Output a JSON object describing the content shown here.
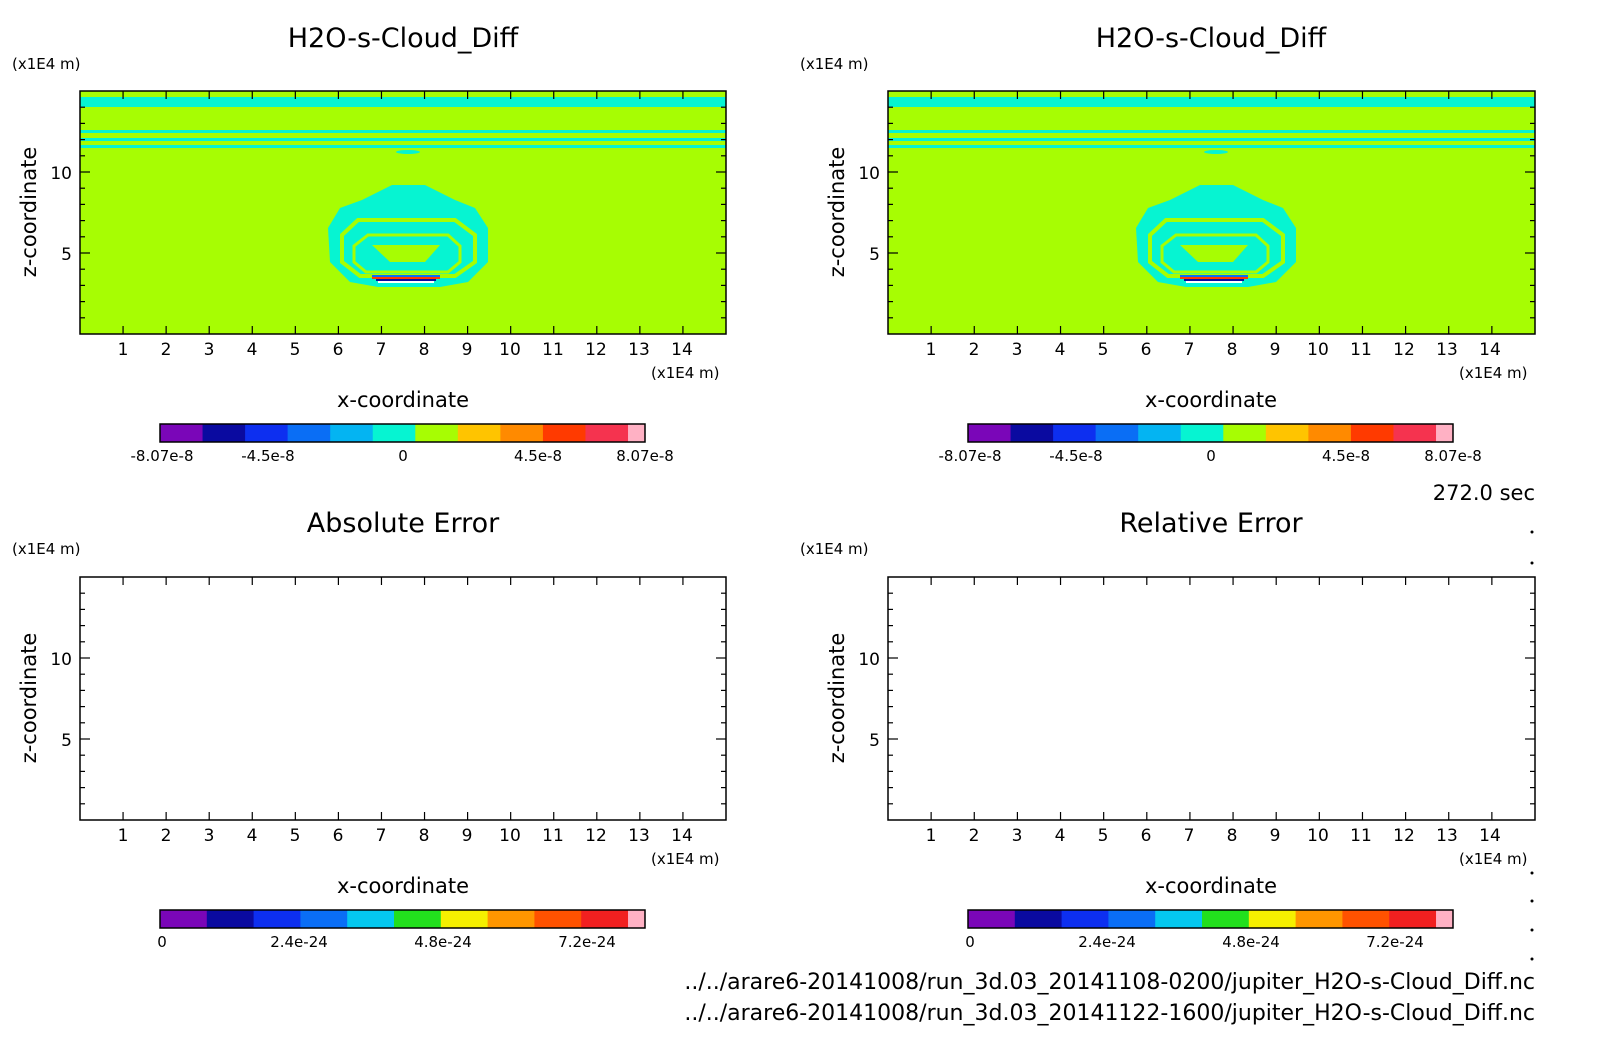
{
  "colors": {
    "diff_colorbar": [
      "#7a06b8",
      "#0a0aa0",
      "#0d2ff0",
      "#0a6ef5",
      "#04b4f2",
      "#06f4d2",
      "#a7fd03",
      "#ffc400",
      "#ff8a00",
      "#ff3a00",
      "#f5334f",
      "#ffb1c4"
    ],
    "error_colorbar": [
      "#7a06b8",
      "#0a0aa0",
      "#0d2ff0",
      "#0a6ef5",
      "#04c8f0",
      "#22e01d",
      "#f5f000",
      "#ff9600",
      "#ff5200",
      "#f22020",
      "#ffb1c4"
    ],
    "field_background": "#a7fd03",
    "field_feature": "#06f4d2"
  },
  "chart_data": [
    {
      "type": "heatmap",
      "title": "H2O-s-Cloud_Diff",
      "xlabel": "x-coordinate",
      "ylabel": "z-coordinate",
      "xunit": "(x1E4 m)",
      "yunit": "(x1E4 m)",
      "xlim": [
        0,
        15
      ],
      "ylim": [
        0,
        15
      ],
      "xticks": [
        "1",
        "2",
        "3",
        "4",
        "5",
        "6",
        "7",
        "8",
        "9",
        "10",
        "11",
        "12",
        "13",
        "14"
      ],
      "yticks": [
        "5",
        "10"
      ],
      "colorbar": {
        "range": [
          -8.07e-08,
          8.07e-08
        ],
        "ticks": [
          "-8.07e-8",
          "-4.5e-8",
          "0",
          "4.5e-8",
          "8.07e-8"
        ]
      },
      "field": "mostly 0 with a small-magnitude cloud structure centred near x=7.7, z=6 and horizontal bands near z=11-15"
    },
    {
      "type": "heatmap",
      "title": "H2O-s-Cloud_Diff",
      "xlabel": "x-coordinate",
      "ylabel": "z-coordinate",
      "xunit": "(x1E4 m)",
      "yunit": "(x1E4 m)",
      "xlim": [
        0,
        15
      ],
      "ylim": [
        0,
        15
      ],
      "xticks": [
        "1",
        "2",
        "3",
        "4",
        "5",
        "6",
        "7",
        "8",
        "9",
        "10",
        "11",
        "12",
        "13",
        "14"
      ],
      "yticks": [
        "5",
        "10"
      ],
      "colorbar": {
        "range": [
          -8.07e-08,
          8.07e-08
        ],
        "ticks": [
          "-8.07e-8",
          "-4.5e-8",
          "0",
          "4.5e-8",
          "8.07e-8"
        ]
      },
      "field": "identical to left panel"
    },
    {
      "type": "heatmap",
      "title": "Absolute Error",
      "xlabel": "x-coordinate",
      "ylabel": "z-coordinate",
      "xunit": "(x1E4 m)",
      "yunit": "(x1E4 m)",
      "xlim": [
        0,
        15
      ],
      "ylim": [
        0,
        15
      ],
      "xticks": [
        "1",
        "2",
        "3",
        "4",
        "5",
        "6",
        "7",
        "8",
        "9",
        "10",
        "11",
        "12",
        "13",
        "14"
      ],
      "yticks": [
        "5",
        "10"
      ],
      "colorbar": {
        "range": [
          0,
          8.5e-24
        ],
        "ticks": [
          "0",
          "2.4e-24",
          "4.8e-24",
          "7.2e-24"
        ]
      },
      "field": "empty"
    },
    {
      "type": "heatmap",
      "title": "Relative Error",
      "xlabel": "x-coordinate",
      "ylabel": "z-coordinate",
      "xunit": "(x1E4 m)",
      "yunit": "(x1E4 m)",
      "xlim": [
        0,
        15
      ],
      "ylim": [
        0,
        15
      ],
      "xticks": [
        "1",
        "2",
        "3",
        "4",
        "5",
        "6",
        "7",
        "8",
        "9",
        "10",
        "11",
        "12",
        "13",
        "14"
      ],
      "yticks": [
        "5",
        "10"
      ],
      "colorbar": {
        "range": [
          0,
          8.5e-24
        ],
        "ticks": [
          "0",
          "2.4e-24",
          "4.8e-24",
          "7.2e-24"
        ]
      },
      "field": "empty"
    }
  ],
  "time_label": "272.0 sec",
  "file_paths": [
    "../../arare6-20141008/run_3d.03_20141108-0200/jupiter_H2O-s-Cloud_Diff.nc",
    "../../arare6-20141008/run_3d.03_20141122-1600/jupiter_H2O-s-Cloud_Diff.nc"
  ]
}
